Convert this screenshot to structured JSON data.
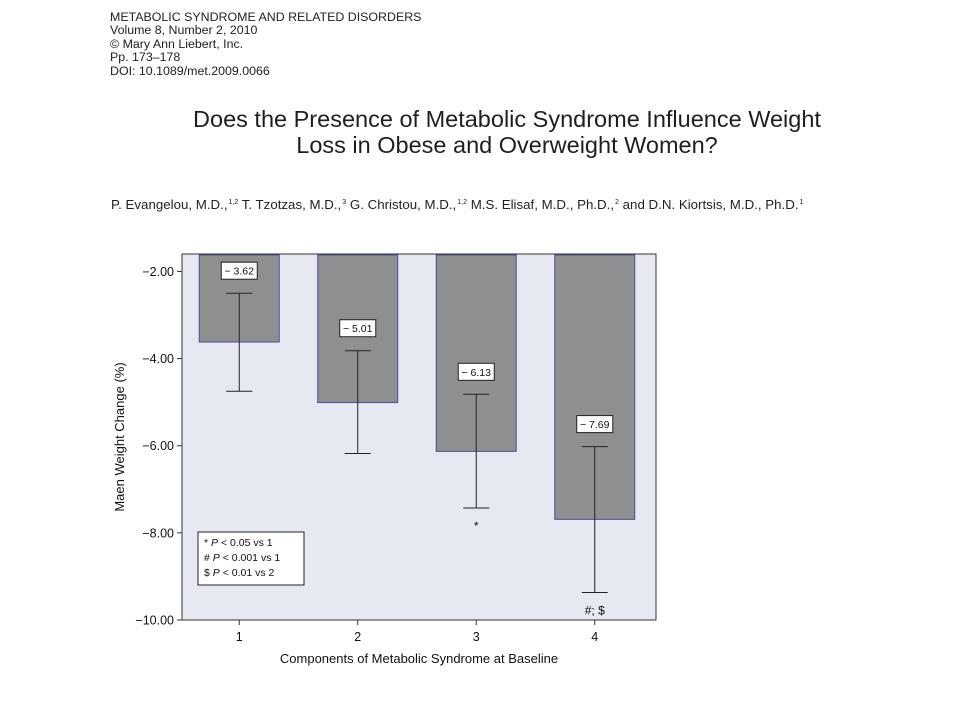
{
  "journal": {
    "name": "METABOLIC SYNDROME AND RELATED DISORDERS",
    "volume": "Volume 8, Number 2, 2010",
    "copyright": "© Mary Ann Liebert, Inc.",
    "pages": "Pp. 173–178",
    "doi": "DOI: 10.1089/met.2009.0066"
  },
  "title": {
    "line1": "Does the Presence of Metabolic Syndrome Influence Weight",
    "line2": "Loss in Obese and Overweight Women?"
  },
  "authors": [
    {
      "name": "P. Evangelou, M.D.,",
      "aff": "1,2"
    },
    {
      "name": "T. Tzotzas, M.D.,",
      "aff": "3"
    },
    {
      "name": "G. Christou, M.D.,",
      "aff": "1,2"
    },
    {
      "name": "M.S. Elisaf, M.D., Ph.D.,",
      "aff": "2"
    },
    {
      "name": "and D.N. Kiortsis, M.D., Ph.D.",
      "aff": "1"
    }
  ],
  "chart_data": {
    "type": "bar",
    "xlabel": "Components of Metabolic Syndrome at Baseline",
    "ylabel": "Maen Weight Change (%)",
    "categories": [
      "1",
      "2",
      "3",
      "4"
    ],
    "values": [
      -3.62,
      -5.01,
      -6.13,
      -7.69
    ],
    "value_labels": [
      "− 3.62",
      "− 5.01",
      "− 6.13",
      "− 7.69"
    ],
    "error_bars": [
      {
        "upper": -2.5,
        "lower": -4.75
      },
      {
        "upper": -3.82,
        "lower": -6.18
      },
      {
        "upper": -4.82,
        "lower": -7.43
      },
      {
        "upper": -6.02,
        "lower": -9.37
      }
    ],
    "significance_marks": [
      "",
      "",
      "*",
      "#; $"
    ],
    "ylim": [
      -10.0,
      -1.6
    ],
    "yticks": [
      -2,
      -4,
      -6,
      -8,
      -10
    ],
    "ytick_labels": [
      "−2.00",
      "−4.00",
      "−6.00",
      "−8.00",
      "−10.00"
    ],
    "legend_placement": "bottom-left",
    "legend": [
      {
        "symbol": "*",
        "text": " < 0.05 vs 1"
      },
      {
        "symbol": "#",
        "text": " < 0.001 vs 1"
      },
      {
        "symbol": "$",
        "text": " < 0.01 vs 2"
      }
    ],
    "colors": {
      "plot_background": "#e6e9f1",
      "bar_fill": "#8f8f8f",
      "bar_outline": "#4a4f9c",
      "axis": "#333333"
    }
  }
}
